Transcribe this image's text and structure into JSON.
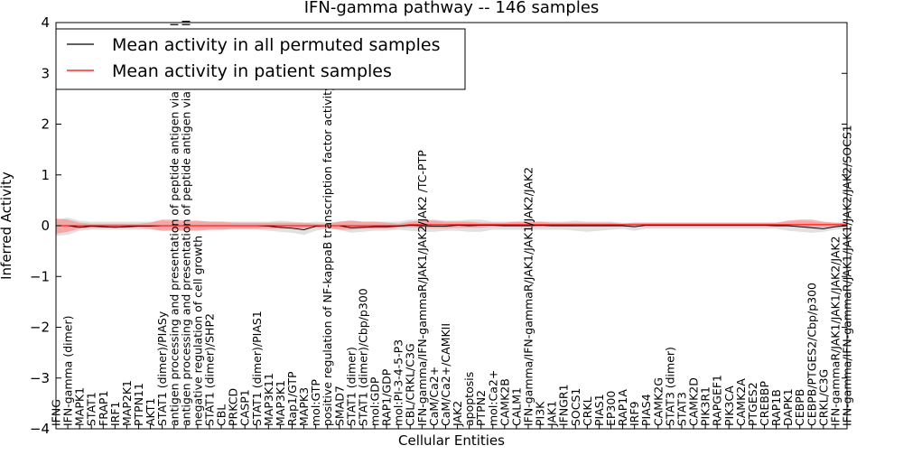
{
  "chart_data": {
    "type": "line",
    "title": "IFN-gamma pathway -- 146 samples",
    "xlabel": "Cellular Entities",
    "ylabel": "Inferred Activity",
    "ylim": [
      -4,
      4
    ],
    "yticks": [
      -4,
      -3,
      -2,
      -1,
      0,
      1,
      2,
      3,
      4
    ],
    "ytick_labels": [
      "−4",
      "−3",
      "−2",
      "−1",
      "0",
      "1",
      "2",
      "3",
      "4"
    ],
    "grid": false,
    "legend_position": "top-left",
    "colors": {
      "permuted_line": "#000000",
      "patient_line": "#ff0000",
      "permuted_band": "#c8c8c8",
      "patient_band": "#ff8080"
    },
    "categories": [
      "IFNG",
      "IFN-gamma (dimer)",
      "MAPK1",
      "STAT1",
      "FRAP1",
      "IRF1",
      "MAP2K1",
      "PTPN11",
      "AKT1",
      "STAT1 (dimer)/PIASy",
      "antigen processing and presentation of peptide antigen via MHC class I",
      "antigen processing and presentation of peptide antigen via MHC class II",
      "negative regulation of cell growth",
      "STAT1 (dimer)/SHP2",
      "CBL",
      "PRKCD",
      "CASP1",
      "STAT1 (dimer)/PIAS1",
      "MAP3K11",
      "MAP3K1",
      "Rap1/GTP",
      "MAPK3",
      "mol:GTP",
      "positive regulation of NF-kappaB transcription factor activity",
      "SMAD7",
      "STAT1 (dimer)",
      "STAT1 (dimer)/Cbp/p300",
      "mol:GDP",
      "RAP1/GDP",
      "mol:PI-3-4-5-P3",
      "CBL/CRKL/C3G",
      "IFN-gamma/IFN-gammaR/JAK1/JAK2/JAK2 /TC-PTP",
      "CaM/Ca2+",
      "CaM/Ca2+/CAMKII",
      "JAK2",
      "apoptosis",
      "PTPN2",
      "mol:Ca2+",
      "CAMK2B",
      "CALM1",
      "IFN-gamma/IFN-gammaR/JAK1/JAK1/JAK2/JAK2",
      "PI3K",
      "JAK1",
      "IFNGR1",
      "SOCS1",
      "CRKL",
      "PIAS1",
      "EP300",
      "RAP1A",
      "IRF9",
      "PIAS4",
      "CAMK2G",
      "STAT3 (dimer)",
      "STAT3",
      "CAMK2D",
      "PIK3R1",
      "RAPGEF1",
      "PIK3CA",
      "CAMK2A",
      "PTGES2",
      "CREBBP",
      "RAP1B",
      "DAPK1",
      "CEBPB",
      "CEBPB/PTGES2/Cbp/p300",
      "CRKL/C3G",
      "IFN-gammaR/JAK1/JAK1/JAK2/JAK2",
      "IFN-gamma/IFN-gammaR/JAK1/JAK1/JAK2/JAK2/SOCS1"
    ],
    "series": [
      {
        "name": "Mean activity in all permuted samples",
        "values": [
          0.0,
          0.0,
          -0.03,
          -0.01,
          -0.02,
          -0.03,
          -0.02,
          -0.01,
          -0.01,
          0.0,
          0.0,
          0.0,
          0.0,
          0.0,
          0.0,
          0.0,
          0.0,
          0.0,
          -0.01,
          -0.03,
          -0.05,
          -0.08,
          -0.01,
          0.0,
          0.0,
          -0.04,
          -0.03,
          -0.02,
          -0.02,
          -0.01,
          0.01,
          0.0,
          -0.01,
          -0.01,
          0.01,
          0.0,
          0.01,
          0.01,
          0.0,
          0.0,
          0.0,
          0.01,
          0.0,
          0.0,
          0.0,
          0.0,
          0.0,
          0.0,
          0.0,
          -0.02,
          0.01,
          0.01,
          0.01,
          0.01,
          0.01,
          0.01,
          0.01,
          0.01,
          0.01,
          0.01,
          0.01,
          0.0,
          0.0,
          -0.02,
          -0.04,
          -0.06,
          -0.02,
          0.0
        ],
        "band_low": [
          -0.2,
          -0.18,
          -0.1,
          -0.08,
          -0.08,
          -0.08,
          -0.08,
          -0.08,
          -0.08,
          -0.1,
          -0.08,
          -0.08,
          -0.08,
          -0.08,
          -0.08,
          -0.08,
          -0.08,
          -0.08,
          -0.1,
          -0.12,
          -0.14,
          -0.18,
          -0.1,
          -0.06,
          -0.08,
          -0.14,
          -0.12,
          -0.1,
          -0.1,
          -0.08,
          -0.1,
          -0.12,
          -0.12,
          -0.1,
          -0.1,
          -0.12,
          -0.12,
          -0.08,
          -0.08,
          -0.08,
          -0.08,
          -0.08,
          -0.08,
          -0.08,
          -0.1,
          -0.12,
          -0.1,
          -0.08,
          -0.06,
          -0.1,
          -0.06,
          -0.06,
          -0.06,
          -0.06,
          -0.06,
          -0.06,
          -0.06,
          -0.06,
          -0.06,
          -0.06,
          -0.06,
          -0.06,
          -0.1,
          -0.12,
          -0.14,
          -0.12,
          -0.08,
          -0.06
        ],
        "band_high": [
          0.12,
          0.16,
          0.1,
          0.08,
          0.08,
          0.08,
          0.08,
          0.08,
          0.08,
          0.1,
          0.08,
          0.08,
          0.08,
          0.08,
          0.08,
          0.08,
          0.08,
          0.08,
          0.08,
          0.1,
          0.08,
          0.06,
          0.08,
          0.06,
          0.08,
          0.1,
          0.08,
          0.08,
          0.08,
          0.08,
          0.12,
          0.12,
          0.12,
          0.1,
          0.1,
          0.12,
          0.12,
          0.08,
          0.08,
          0.08,
          0.08,
          0.08,
          0.08,
          0.08,
          0.1,
          0.08,
          0.08,
          0.08,
          0.06,
          0.06,
          0.06,
          0.06,
          0.06,
          0.06,
          0.06,
          0.06,
          0.06,
          0.06,
          0.06,
          0.06,
          0.06,
          0.06,
          0.08,
          0.1,
          0.08,
          0.06,
          0.06,
          0.06
        ]
      },
      {
        "name": "Mean activity in patient samples",
        "values": [
          0.0,
          0.0,
          0.0,
          0.0,
          0.0,
          0.0,
          0.0,
          0.0,
          0.0,
          0.0,
          0.0,
          0.0,
          0.0,
          0.0,
          0.0,
          0.0,
          0.0,
          0.0,
          0.0,
          0.0,
          0.0,
          0.0,
          0.0,
          0.0,
          0.0,
          0.0,
          0.0,
          0.0,
          0.0,
          0.0,
          0.02,
          0.02,
          0.02,
          0.02,
          0.02,
          0.02,
          0.02,
          0.02,
          0.02,
          0.02,
          0.02,
          0.02,
          0.02,
          0.02,
          0.02,
          0.02,
          0.02,
          0.02,
          0.02,
          0.02,
          0.02,
          0.02,
          0.02,
          0.02,
          0.02,
          0.02,
          0.02,
          0.02,
          0.02,
          0.02,
          0.02,
          0.02,
          0.02,
          0.02,
          0.02,
          0.02,
          0.02,
          0.02
        ],
        "band_low": [
          -0.16,
          -0.12,
          -0.06,
          -0.04,
          -0.04,
          -0.04,
          -0.04,
          -0.04,
          -0.06,
          -0.1,
          -0.1,
          -0.1,
          -0.1,
          -0.08,
          -0.08,
          -0.06,
          -0.06,
          -0.06,
          -0.06,
          -0.06,
          -0.06,
          -0.05,
          -0.04,
          -0.05,
          -0.08,
          -0.08,
          -0.06,
          -0.06,
          -0.06,
          -0.04,
          -0.03,
          -0.04,
          -0.05,
          -0.05,
          -0.04,
          -0.04,
          -0.04,
          -0.02,
          -0.02,
          -0.02,
          -0.02,
          -0.02,
          -0.02,
          -0.02,
          -0.02,
          -0.02,
          -0.02,
          -0.02,
          -0.02,
          -0.02,
          -0.02,
          -0.02,
          -0.02,
          -0.02,
          -0.02,
          -0.02,
          -0.02,
          -0.02,
          -0.02,
          -0.02,
          -0.02,
          -0.02,
          -0.02,
          -0.02,
          -0.03,
          -0.03,
          -0.02,
          -0.02
        ],
        "band_high": [
          0.14,
          0.12,
          0.06,
          0.04,
          0.04,
          0.04,
          0.04,
          0.04,
          0.06,
          0.12,
          0.12,
          0.1,
          0.1,
          0.08,
          0.08,
          0.06,
          0.06,
          0.06,
          0.06,
          0.06,
          0.06,
          0.06,
          0.04,
          0.04,
          0.08,
          0.1,
          0.08,
          0.08,
          0.06,
          0.04,
          0.08,
          0.1,
          0.1,
          0.08,
          0.08,
          0.08,
          0.06,
          0.06,
          0.06,
          0.08,
          0.08,
          0.08,
          0.06,
          0.06,
          0.06,
          0.06,
          0.06,
          0.06,
          0.04,
          0.06,
          0.06,
          0.06,
          0.06,
          0.06,
          0.06,
          0.06,
          0.06,
          0.06,
          0.06,
          0.06,
          0.06,
          0.06,
          0.1,
          0.12,
          0.12,
          0.08,
          0.06,
          0.06
        ]
      }
    ]
  }
}
